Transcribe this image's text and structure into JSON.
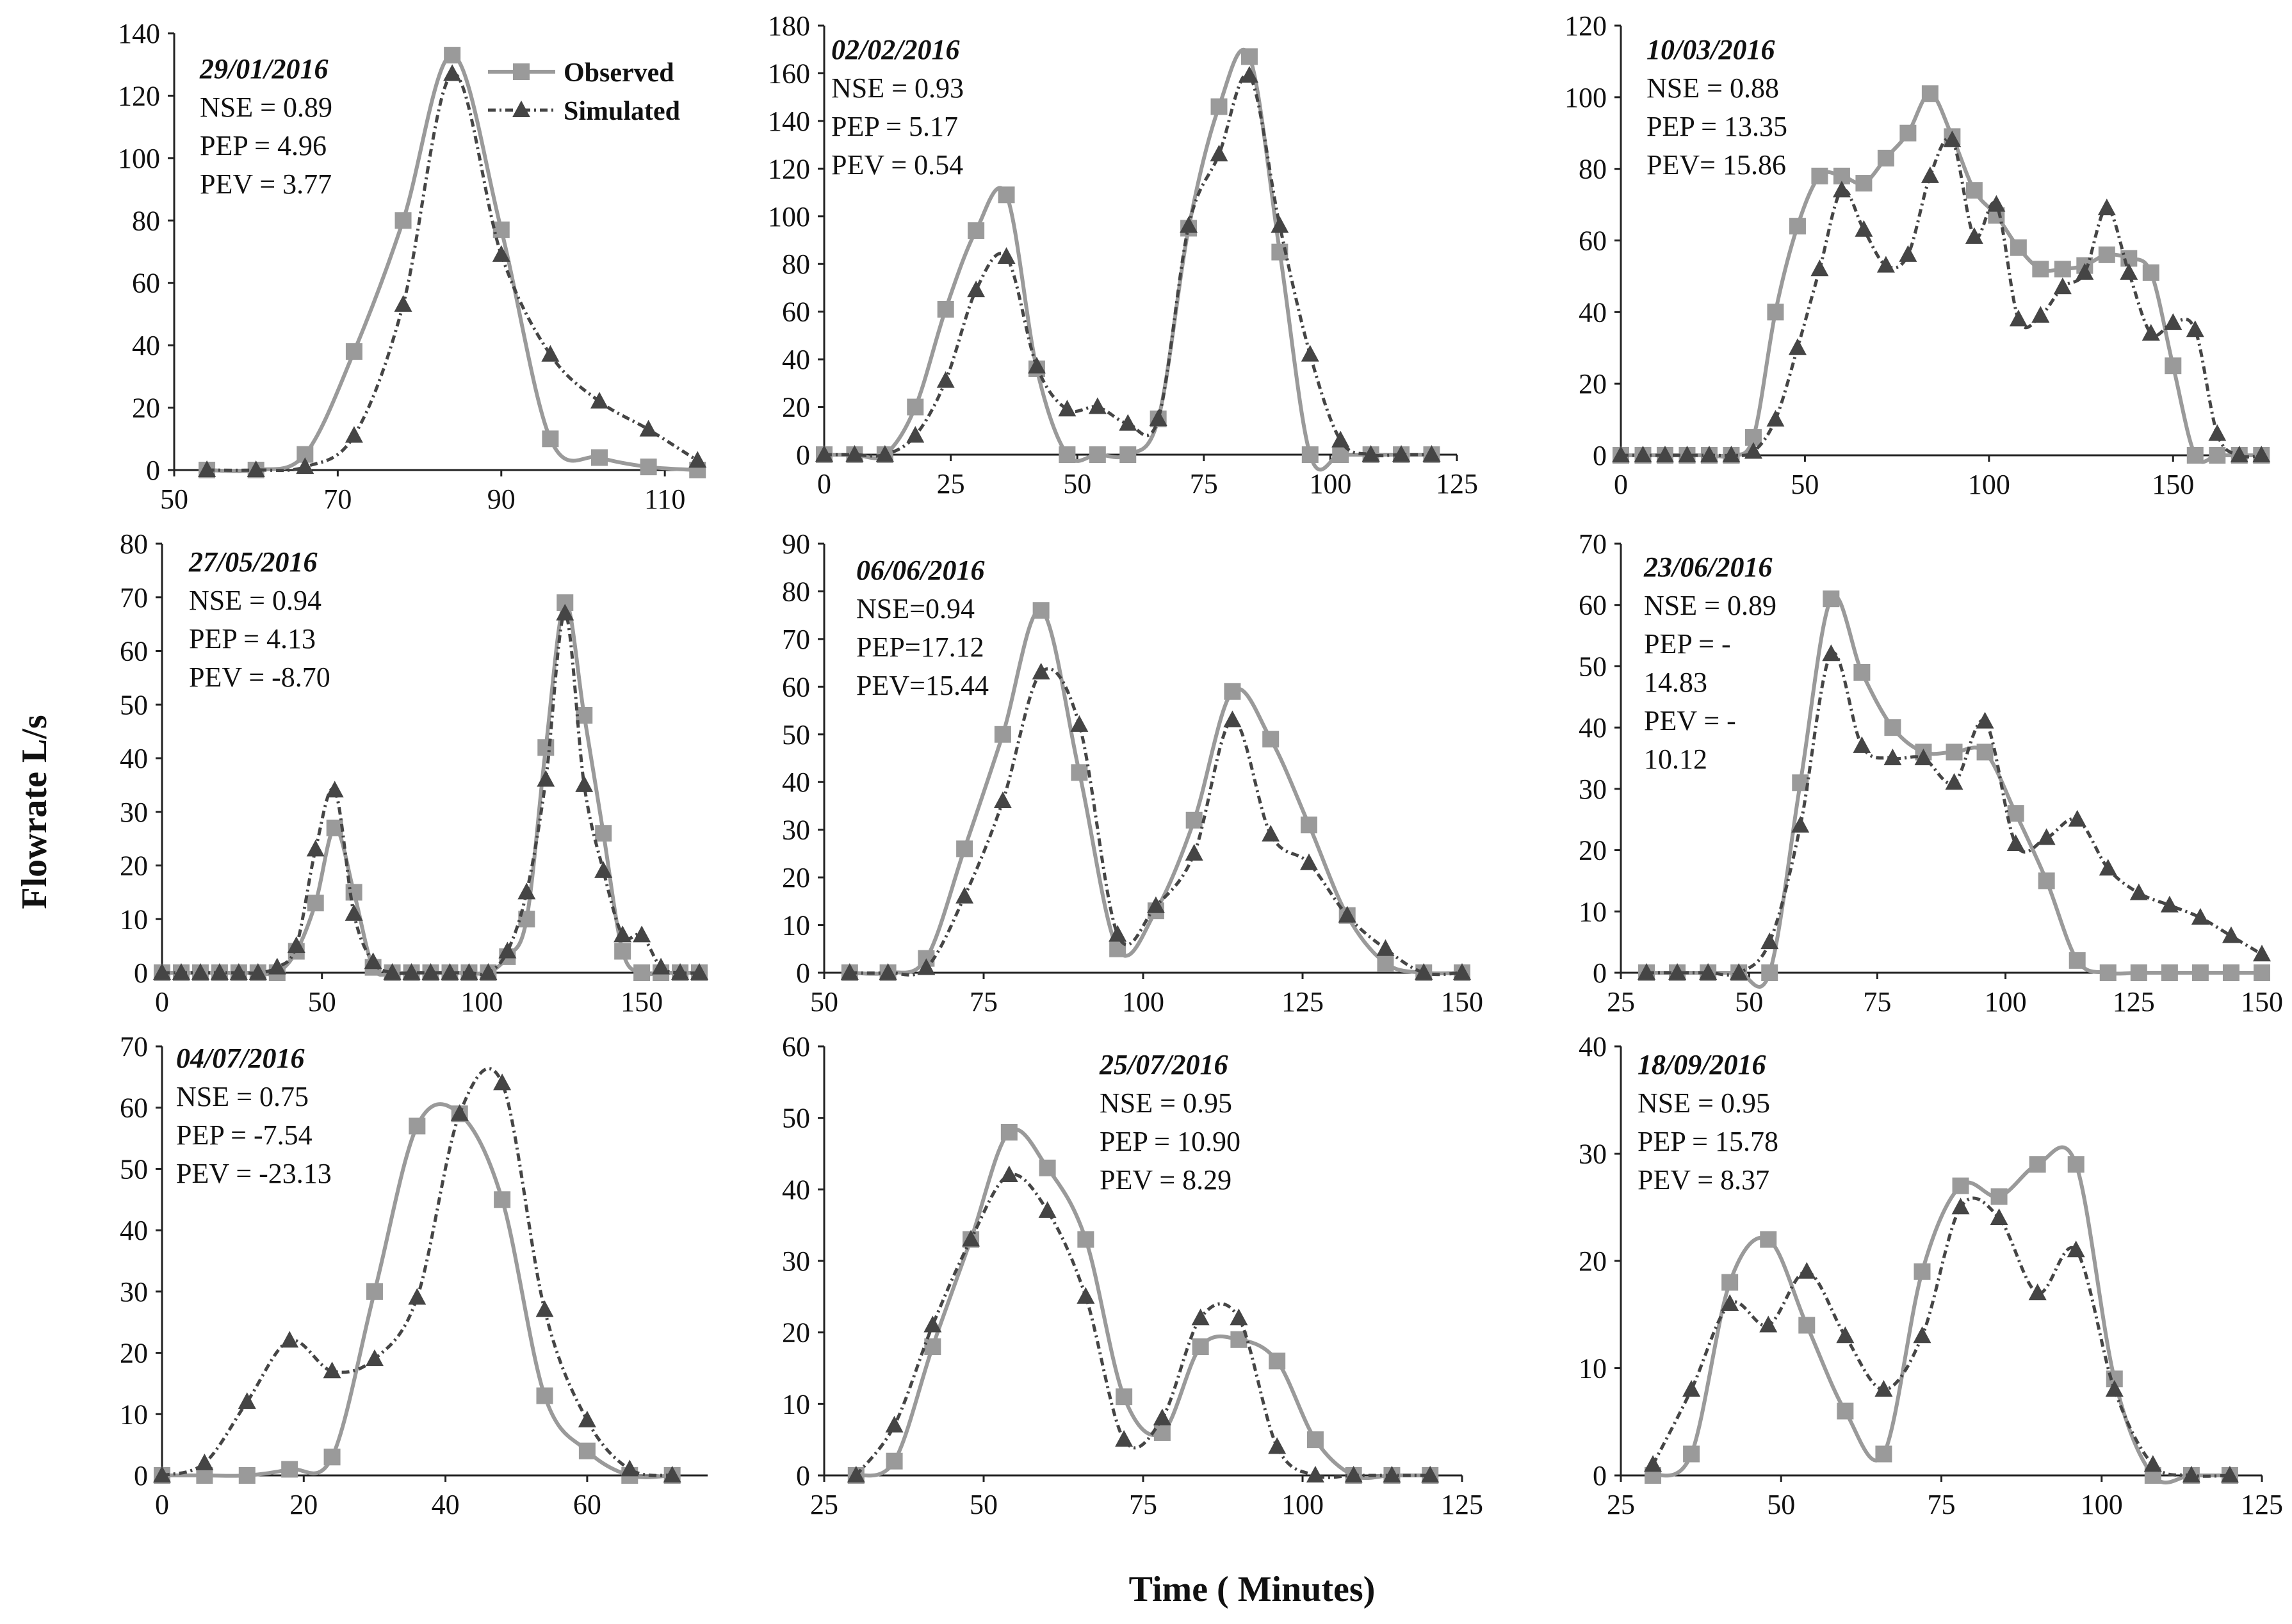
{
  "figure": {
    "ylabel": "Flowrate L/s",
    "xlabel": "Time ( Minutes)",
    "legend": {
      "observed": "Observed",
      "simulated": "Simulated"
    },
    "colors": {
      "observed": "#9a9a9a",
      "simulated": "#454545",
      "axis": "#222222"
    }
  },
  "chart_data": [
    {
      "type": "line",
      "title": "29/01/2016",
      "stats": [
        "NSE = 0.89",
        "PEP = 4.96",
        "PEV = 3.77"
      ],
      "xlim": [
        50,
        115
      ],
      "ylim": [
        0,
        140
      ],
      "xticks": [
        50,
        70,
        90,
        110
      ],
      "yticks": [
        0,
        20,
        40,
        60,
        80,
        100,
        120,
        140
      ],
      "show_legend": true,
      "legend_position": "top-right",
      "series": [
        {
          "name": "Observed",
          "x": [
            54,
            60,
            66,
            72,
            78,
            84,
            90,
            96,
            102,
            108,
            114
          ],
          "y": [
            0,
            0,
            5,
            38,
            80,
            133,
            77,
            10,
            4,
            1,
            0
          ]
        },
        {
          "name": "Simulated",
          "x": [
            54,
            60,
            66,
            72,
            78,
            84,
            90,
            96,
            102,
            108,
            114
          ],
          "y": [
            0,
            0,
            1,
            11,
            53,
            127,
            69,
            37,
            22,
            13,
            3
          ]
        }
      ]
    },
    {
      "type": "line",
      "title": "02/02/2016",
      "stats": [
        "NSE = 0.93",
        "PEP = 5.17",
        "PEV = 0.54"
      ],
      "xlim": [
        0,
        125
      ],
      "ylim": [
        0,
        180
      ],
      "xticks": [
        0,
        25,
        50,
        75,
        100,
        125
      ],
      "yticks": [
        0,
        20,
        40,
        60,
        80,
        100,
        120,
        140,
        160,
        180
      ],
      "show_legend": false,
      "series": [
        {
          "name": "Observed",
          "x": [
            0,
            6,
            12,
            18,
            24,
            30,
            36,
            42,
            48,
            54,
            60,
            66,
            72,
            78,
            84,
            90,
            96,
            102,
            108,
            114,
            120
          ],
          "y": [
            0,
            0,
            0,
            20,
            61,
            94,
            109,
            36,
            0,
            0,
            0,
            15,
            95,
            146,
            167,
            85,
            0,
            0,
            0,
            0,
            0
          ]
        },
        {
          "name": "Simulated",
          "x": [
            0,
            6,
            12,
            18,
            24,
            30,
            36,
            42,
            48,
            54,
            60,
            66,
            72,
            78,
            84,
            90,
            96,
            102,
            108,
            114,
            120
          ],
          "y": [
            0,
            0,
            0,
            8,
            31,
            69,
            83,
            37,
            19,
            20,
            13,
            15,
            96,
            126,
            159,
            96,
            42,
            6,
            0,
            0,
            0
          ]
        }
      ]
    },
    {
      "type": "line",
      "title": "10/03/2016",
      "stats": [
        "NSE = 0.88",
        "PEP = 13.35",
        "PEV= 15.86"
      ],
      "xlim": [
        0,
        175
      ],
      "ylim": [
        0,
        120
      ],
      "xticks": [
        0,
        50,
        100,
        150
      ],
      "yticks": [
        0,
        20,
        40,
        60,
        80,
        100,
        120
      ],
      "show_legend": false,
      "series": [
        {
          "name": "Observed",
          "x": [
            0,
            6,
            12,
            18,
            24,
            30,
            36,
            42,
            48,
            54,
            60,
            66,
            72,
            78,
            84,
            90,
            96,
            102,
            108,
            114,
            120,
            126,
            132,
            138,
            144,
            150,
            156,
            162,
            168,
            174
          ],
          "y": [
            0,
            0,
            0,
            0,
            0,
            0,
            5,
            40,
            64,
            78,
            78,
            76,
            83,
            90,
            101,
            89,
            74,
            67,
            58,
            52,
            52,
            53,
            56,
            55,
            51,
            25,
            0,
            0,
            0,
            0
          ]
        },
        {
          "name": "Simulated",
          "x": [
            0,
            6,
            12,
            18,
            24,
            30,
            36,
            42,
            48,
            54,
            60,
            66,
            72,
            78,
            84,
            90,
            96,
            102,
            108,
            114,
            120,
            126,
            132,
            138,
            144,
            150,
            156,
            162,
            168,
            174
          ],
          "y": [
            0,
            0,
            0,
            0,
            0,
            0,
            1,
            10,
            30,
            52,
            74,
            63,
            53,
            56,
            78,
            88,
            61,
            70,
            38,
            39,
            47,
            51,
            69,
            51,
            34,
            37,
            35,
            6,
            0,
            0
          ]
        }
      ]
    },
    {
      "type": "line",
      "title": "27/05/2016",
      "stats": [
        "NSE = 0.94",
        "PEP = 4.13",
        "PEV = -8.70"
      ],
      "xlim": [
        0,
        170
      ],
      "ylim": [
        0,
        80
      ],
      "xticks": [
        0,
        50,
        100,
        150
      ],
      "yticks": [
        0,
        10,
        20,
        30,
        40,
        50,
        60,
        70,
        80
      ],
      "show_legend": false,
      "series": [
        {
          "name": "Observed",
          "x": [
            0,
            6,
            12,
            18,
            24,
            30,
            36,
            42,
            48,
            54,
            60,
            66,
            72,
            78,
            84,
            90,
            96,
            102,
            108,
            114,
            120,
            126,
            132,
            138,
            144,
            150,
            156,
            162,
            168
          ],
          "y": [
            0,
            0,
            0,
            0,
            0,
            0,
            0,
            4,
            13,
            27,
            15,
            1,
            0,
            0,
            0,
            0,
            0,
            0,
            3,
            10,
            42,
            69,
            48,
            26,
            4,
            0,
            0,
            0,
            0
          ]
        },
        {
          "name": "Simulated",
          "x": [
            0,
            6,
            12,
            18,
            24,
            30,
            36,
            42,
            48,
            54,
            60,
            66,
            72,
            78,
            84,
            90,
            96,
            102,
            108,
            114,
            120,
            126,
            132,
            138,
            144,
            150,
            156,
            162,
            168
          ],
          "y": [
            0,
            0,
            0,
            0,
            0,
            0,
            1,
            5,
            23,
            34,
            11,
            2,
            0,
            0,
            0,
            0,
            0,
            0,
            4,
            15,
            36,
            67,
            35,
            19,
            7,
            7,
            1,
            0,
            0
          ]
        }
      ]
    },
    {
      "type": "line",
      "title": "06/06/2016",
      "stats": [
        "NSE=0.94",
        "PEP=17.12",
        "PEV=15.44"
      ],
      "xlim": [
        50,
        150
      ],
      "ylim": [
        0,
        90
      ],
      "xticks": [
        50,
        75,
        100,
        125,
        150
      ],
      "yticks": [
        0,
        10,
        20,
        30,
        40,
        50,
        60,
        70,
        80,
        90
      ],
      "show_legend": false,
      "series": [
        {
          "name": "Observed",
          "x": [
            54,
            60,
            66,
            72,
            78,
            84,
            90,
            96,
            102,
            108,
            114,
            120,
            126,
            132,
            138,
            144,
            150
          ],
          "y": [
            0,
            0,
            3,
            26,
            50,
            76,
            42,
            5,
            13,
            32,
            59,
            49,
            31,
            12,
            2,
            0,
            0
          ]
        },
        {
          "name": "Simulated",
          "x": [
            54,
            60,
            66,
            72,
            78,
            84,
            90,
            96,
            102,
            108,
            114,
            120,
            126,
            132,
            138,
            144,
            150
          ],
          "y": [
            0,
            0,
            1,
            16,
            36,
            63,
            52,
            8,
            14,
            25,
            53,
            29,
            23,
            12,
            5,
            0,
            0
          ]
        }
      ]
    },
    {
      "type": "line",
      "title": "23/06/2016",
      "stats": [
        "NSE = 0.89",
        "PEP = -",
        "14.83",
        "PEV = -",
        "10.12"
      ],
      "xlim": [
        25,
        150
      ],
      "ylim": [
        0,
        70
      ],
      "xticks": [
        25,
        50,
        75,
        100,
        125,
        150
      ],
      "yticks": [
        0,
        10,
        20,
        30,
        40,
        50,
        60,
        70
      ],
      "show_legend": false,
      "series": [
        {
          "name": "Observed",
          "x": [
            30,
            36,
            42,
            48,
            54,
            60,
            66,
            72,
            78,
            84,
            90,
            96,
            102,
            108,
            114,
            120,
            126,
            132,
            138,
            144,
            150
          ],
          "y": [
            0,
            0,
            0,
            0,
            0,
            31,
            61,
            49,
            40,
            36,
            36,
            36,
            26,
            15,
            2,
            0,
            0,
            0,
            0,
            0,
            0
          ]
        },
        {
          "name": "Simulated",
          "x": [
            30,
            36,
            42,
            48,
            54,
            60,
            66,
            72,
            78,
            84,
            90,
            96,
            102,
            108,
            114,
            120,
            126,
            132,
            138,
            144,
            150
          ],
          "y": [
            0,
            0,
            0,
            0,
            5,
            24,
            52,
            37,
            35,
            35,
            31,
            41,
            21,
            22,
            25,
            17,
            13,
            11,
            9,
            6,
            3
          ]
        }
      ]
    },
    {
      "type": "line",
      "title": "04/07/2016",
      "stats": [
        "NSE = 0.75",
        "PEP = -7.54",
        "PEV = -23.13"
      ],
      "xlim": [
        0,
        77
      ],
      "ylim": [
        0,
        70
      ],
      "xticks": [
        0,
        20,
        40,
        60
      ],
      "yticks": [
        0,
        10,
        20,
        30,
        40,
        50,
        60,
        70
      ],
      "show_legend": false,
      "series": [
        {
          "name": "Observed",
          "x": [
            0,
            6,
            12,
            18,
            24,
            30,
            36,
            42,
            48,
            54,
            60,
            66,
            72
          ],
          "y": [
            0,
            0,
            0,
            1,
            3,
            30,
            57,
            59,
            45,
            13,
            4,
            0,
            0
          ]
        },
        {
          "name": "Simulated",
          "x": [
            0,
            6,
            12,
            18,
            24,
            30,
            36,
            42,
            48,
            54,
            60,
            66,
            72
          ],
          "y": [
            0,
            2,
            12,
            22,
            17,
            19,
            29,
            59,
            64,
            27,
            9,
            1,
            0
          ]
        }
      ]
    },
    {
      "type": "line",
      "title": "25/07/2016",
      "stats": [
        "NSE = 0.95",
        "PEP = 10.90",
        "PEV = 8.29"
      ],
      "xlim": [
        25,
        125
      ],
      "ylim": [
        0,
        60
      ],
      "xticks": [
        25,
        50,
        75,
        100,
        125
      ],
      "yticks": [
        0,
        10,
        20,
        30,
        40,
        50,
        60
      ],
      "show_legend": false,
      "series": [
        {
          "name": "Observed",
          "x": [
            30,
            36,
            42,
            48,
            54,
            60,
            66,
            72,
            78,
            84,
            90,
            96,
            102,
            108,
            114,
            120
          ],
          "y": [
            0,
            2,
            18,
            33,
            48,
            43,
            33,
            11,
            6,
            18,
            19,
            16,
            5,
            0,
            0,
            0
          ]
        },
        {
          "name": "Simulated",
          "x": [
            30,
            36,
            42,
            48,
            54,
            60,
            66,
            72,
            78,
            84,
            90,
            96,
            102,
            108,
            114,
            120
          ],
          "y": [
            0,
            7,
            21,
            33,
            42,
            37,
            25,
            5,
            8,
            22,
            22,
            4,
            0,
            0,
            0,
            0
          ]
        }
      ]
    },
    {
      "type": "line",
      "title": "18/09/2016",
      "stats": [
        "NSE = 0.95",
        "PEP = 15.78",
        "PEV = 8.37"
      ],
      "xlim": [
        25,
        125
      ],
      "ylim": [
        0,
        40
      ],
      "xticks": [
        25,
        50,
        75,
        100,
        125
      ],
      "yticks": [
        0,
        10,
        20,
        30,
        40
      ],
      "show_legend": false,
      "series": [
        {
          "name": "Observed",
          "x": [
            30,
            36,
            42,
            48,
            54,
            60,
            66,
            72,
            78,
            84,
            90,
            96,
            102,
            108,
            114,
            120
          ],
          "y": [
            0,
            2,
            18,
            22,
            14,
            6,
            2,
            19,
            27,
            26,
            29,
            29,
            9,
            0,
            0,
            0
          ]
        },
        {
          "name": "Simulated",
          "x": [
            30,
            36,
            42,
            48,
            54,
            60,
            66,
            72,
            78,
            84,
            90,
            96,
            102,
            108,
            114,
            120
          ],
          "y": [
            1,
            8,
            16,
            14,
            19,
            13,
            8,
            13,
            25,
            24,
            17,
            21,
            8,
            1,
            0,
            0
          ]
        }
      ]
    }
  ]
}
